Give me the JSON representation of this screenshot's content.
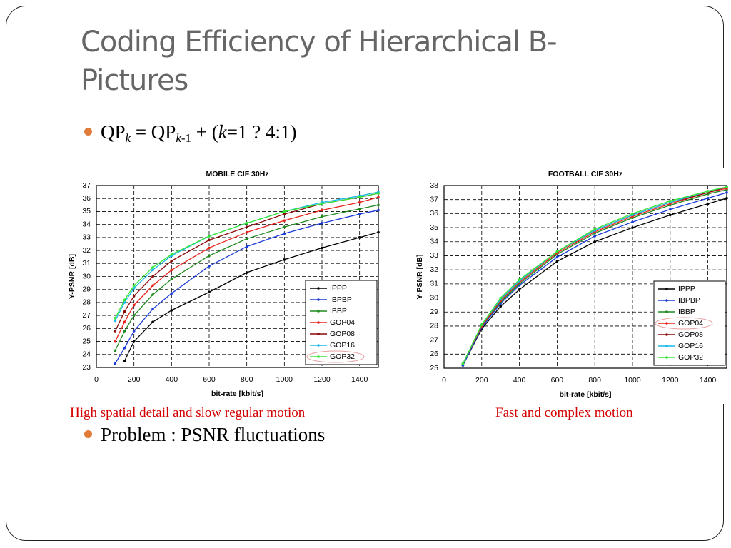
{
  "slide": {
    "title": "Coding Efficiency of Hierarchical B-Pictures",
    "bullets": [
      {
        "parts": [
          "QP",
          "k",
          " = QP",
          "k",
          "-1",
          " + (",
          "k",
          "=1 ? 4:1)"
        ]
      },
      {
        "parts": [
          "Problem : PSNR fluctuations"
        ]
      }
    ],
    "captions": [
      "High spatial detail and slow regular motion",
      "Fast and complex motion"
    ]
  },
  "chart_data": [
    {
      "type": "line",
      "title": "MOBILE CIF 30Hz",
      "x_label": "bit-rate [kbit/s]",
      "y_label": "Y-PSNR [dB]",
      "x": [
        100,
        150,
        200,
        300,
        400,
        600,
        800,
        1000,
        1200,
        1400,
        1500
      ],
      "xlim": [
        0,
        1500
      ],
      "ylim": [
        23,
        37
      ],
      "xticks": [
        0,
        200,
        400,
        600,
        800,
        1000,
        1200,
        1400
      ],
      "yticks": [
        23,
        24,
        25,
        26,
        27,
        28,
        29,
        30,
        31,
        32,
        33,
        34,
        35,
        36,
        37
      ],
      "grid": true,
      "legend": "lower right",
      "series": [
        {
          "name": "IPPP",
          "color": "#000000",
          "values": [
            null,
            23.5,
            25,
            26.5,
            27.4,
            28.8,
            30.3,
            31.3,
            32.2,
            33,
            33.4
          ]
        },
        {
          "name": "IBPBP",
          "color": "#1a3adb",
          "values": [
            23.3,
            24.5,
            25.8,
            27.5,
            28.7,
            30.8,
            32.3,
            33.3,
            34.1,
            34.8,
            35.1
          ]
        },
        {
          "name": "IBBP",
          "color": "#1f8a1f",
          "values": [
            24.3,
            25.8,
            27,
            28.6,
            29.8,
            31.6,
            32.9,
            33.8,
            34.6,
            35.2,
            35.5
          ]
        },
        {
          "name": "GOP04",
          "color": "#e8231c",
          "values": [
            25,
            26.5,
            27.8,
            29.3,
            30.5,
            32.2,
            33.4,
            34.3,
            35.1,
            35.7,
            36.1
          ]
        },
        {
          "name": "GOP08",
          "color": "#8b0a0a",
          "values": [
            25.8,
            27.3,
            28.5,
            30,
            31.2,
            32.8,
            33.8,
            34.8,
            35.6,
            36.1,
            36.4
          ]
        },
        {
          "name": "GOP16",
          "color": "#1cb8e8",
          "values": [
            26.6,
            28,
            29.1,
            30.5,
            31.6,
            33.1,
            34.1,
            35,
            35.7,
            36.2,
            36.5
          ]
        },
        {
          "name": "GOP32",
          "color": "#33e633",
          "values": [
            26.8,
            28.2,
            29.3,
            30.7,
            31.7,
            33.1,
            34.1,
            35,
            35.6,
            36.1,
            36.4
          ]
        }
      ]
    },
    {
      "type": "line",
      "title": "FOOTBALL CIF 30Hz",
      "x_label": "bit-rate [kbit/s]",
      "y_label": "Y-PSNR [dB]",
      "x": [
        100,
        200,
        300,
        400,
        600,
        800,
        1000,
        1200,
        1400,
        1500
      ],
      "xlim": [
        0,
        1500
      ],
      "ylim": [
        25,
        38
      ],
      "xticks": [
        0,
        200,
        400,
        600,
        800,
        1000,
        1200,
        1400
      ],
      "yticks": [
        25,
        26,
        27,
        28,
        29,
        30,
        31,
        32,
        33,
        34,
        35,
        36,
        37,
        38
      ],
      "grid": true,
      "legend": "lower right",
      "series": [
        {
          "name": "IPPP",
          "color": "#000000",
          "values": [
            25.2,
            27.8,
            29.4,
            30.6,
            32.6,
            34,
            35,
            35.9,
            36.7,
            37.1
          ]
        },
        {
          "name": "IBPBP",
          "color": "#1a3adb",
          "values": [
            25.2,
            27.9,
            29.6,
            30.9,
            32.9,
            34.4,
            35.4,
            36.3,
            37.1,
            37.5
          ]
        },
        {
          "name": "IBBP",
          "color": "#1f8a1f",
          "values": [
            25.3,
            28,
            29.7,
            31,
            33.1,
            34.6,
            35.7,
            36.6,
            37.4,
            37.7
          ]
        },
        {
          "name": "GOP04",
          "color": "#e8231c",
          "values": [
            25.3,
            28,
            29.8,
            31.1,
            33.2,
            34.7,
            35.8,
            36.7,
            37.5,
            37.8
          ]
        },
        {
          "name": "GOP08",
          "color": "#8b0a0a",
          "values": [
            25.3,
            28.1,
            29.9,
            31.2,
            33.3,
            34.8,
            35.9,
            36.8,
            37.5,
            37.9
          ]
        },
        {
          "name": "GOP16",
          "color": "#1cb8e8",
          "values": [
            25.3,
            28.1,
            29.9,
            31.2,
            33.3,
            34.8,
            35.9,
            36.8,
            37.6,
            37.9
          ]
        },
        {
          "name": "GOP32",
          "color": "#33e633",
          "values": [
            25.3,
            28.1,
            30,
            31.3,
            33.3,
            34.9,
            36,
            36.9,
            37.6,
            37.9
          ]
        }
      ]
    }
  ]
}
